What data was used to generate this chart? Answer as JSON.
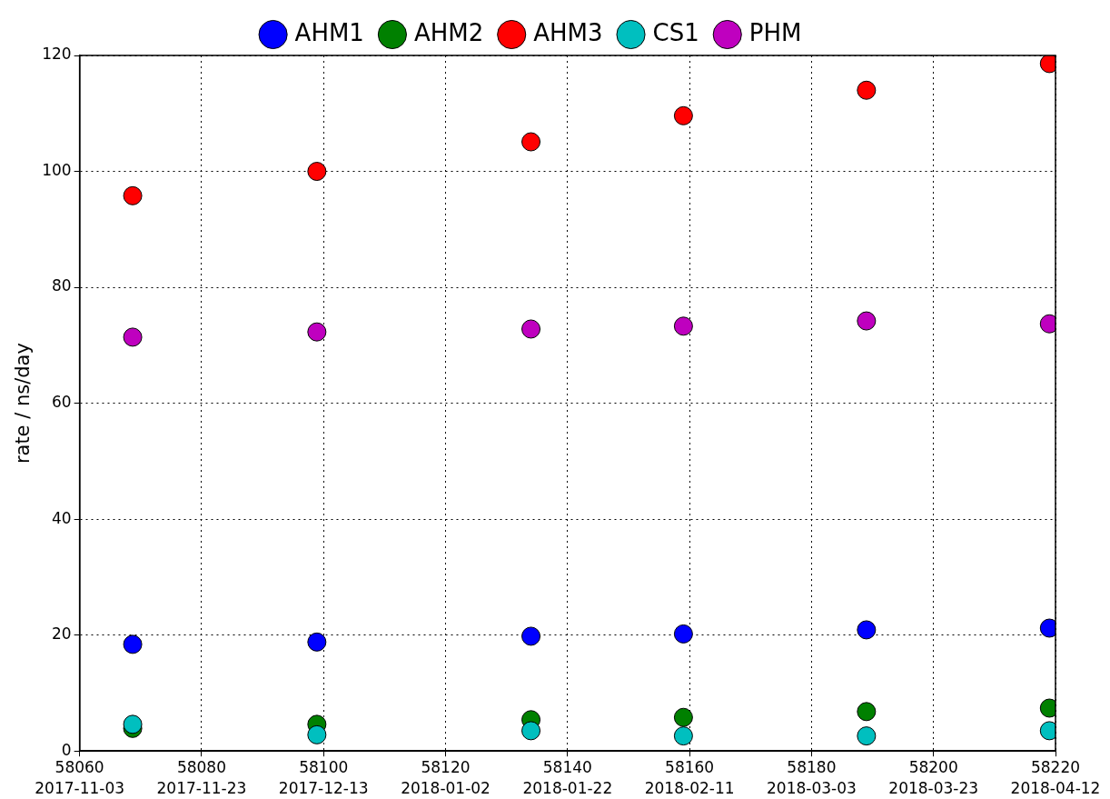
{
  "chart_data": {
    "type": "scatter",
    "ylabel": "rate / ns/day",
    "x": [
      58068.7,
      58098.9,
      58134,
      58159,
      58189,
      58219
    ],
    "series": [
      {
        "name": "AHM1",
        "color": "#0000ff",
        "values": [
          18.4,
          18.8,
          19.8,
          20.2,
          20.9,
          21.2
        ]
      },
      {
        "name": "AHM2",
        "color": "#008000",
        "values": [
          3.9,
          4.6,
          5.4,
          5.8,
          6.8,
          7.4
        ]
      },
      {
        "name": "AHM3",
        "color": "#ff0000",
        "values": [
          95.8,
          100,
          105.1,
          109.6,
          114,
          118.6
        ]
      },
      {
        "name": "CS1",
        "color": "#00bfbf",
        "values": [
          4.6,
          2.8,
          3.5,
          2.6,
          2.6,
          3.5
        ]
      },
      {
        "name": "PHM",
        "color": "#bf00bf",
        "values": [
          71.4,
          72.3,
          72.8,
          73.3,
          74.2,
          73.7
        ]
      }
    ],
    "xlim": [
      58060,
      58220
    ],
    "xticks": [
      58060,
      58080,
      58100,
      58120,
      58140,
      58160,
      58180,
      58200,
      58220
    ],
    "x2lim": [
      "2017-11-03",
      "2018-04-12"
    ],
    "x2ticks": [
      "2017-11-03",
      "2017-11-23",
      "2017-12-13",
      "2018-01-02",
      "2018-01-22",
      "2018-02-11",
      "2018-03-03",
      "2018-03-23",
      "2018-04-12"
    ],
    "ylim": [
      0,
      120
    ],
    "yticks": [
      0,
      20,
      40,
      60,
      80,
      100,
      120
    ],
    "grid": true,
    "legend": "top",
    "marker": "circle"
  }
}
